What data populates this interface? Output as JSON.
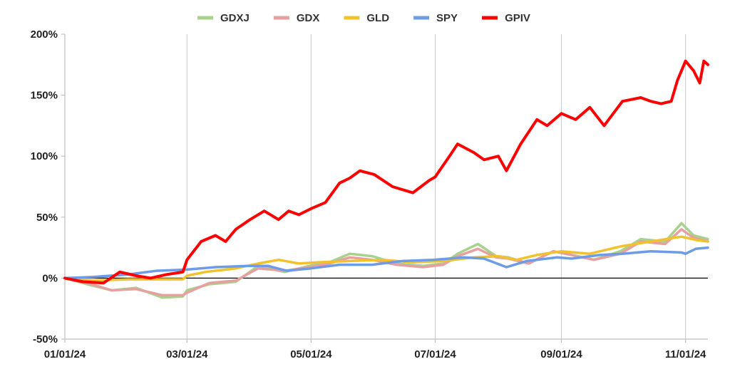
{
  "chart_data": {
    "type": "line",
    "title": "",
    "xlabel": "",
    "ylabel": "",
    "ylim": [
      -50,
      200
    ],
    "yticks": [
      -50,
      0,
      50,
      100,
      150,
      200
    ],
    "ytick_labels": [
      "-50%",
      "0%",
      "50%",
      "100%",
      "150%",
      "200%"
    ],
    "xlim": [
      "2024-01-01",
      "2024-11-12"
    ],
    "xticks": [
      "2024-01-01",
      "2024-03-01",
      "2024-05-01",
      "2024-07-01",
      "2024-09-01",
      "2024-11-01"
    ],
    "xtick_labels": [
      "01/01/24",
      "03/01/24",
      "05/01/24",
      "07/01/24",
      "09/01/24",
      "11/01/24"
    ],
    "grid": "vertical",
    "legend_position": "top",
    "zero_line": true,
    "series": [
      {
        "name": "GDXJ",
        "color": "#a9d18e",
        "width": 3.5,
        "x": [
          "2024-01-01",
          "2024-01-12",
          "2024-01-24",
          "2024-02-05",
          "2024-02-18",
          "2024-02-28",
          "2024-03-01",
          "2024-03-12",
          "2024-03-25",
          "2024-04-05",
          "2024-04-18",
          "2024-04-30",
          "2024-05-10",
          "2024-05-20",
          "2024-05-31",
          "2024-06-12",
          "2024-06-25",
          "2024-07-05",
          "2024-07-12",
          "2024-07-22",
          "2024-07-31",
          "2024-08-06",
          "2024-08-16",
          "2024-08-28",
          "2024-09-06",
          "2024-09-17",
          "2024-09-30",
          "2024-10-10",
          "2024-10-22",
          "2024-10-30",
          "2024-11-05",
          "2024-11-12"
        ],
        "y": [
          0,
          -5,
          -10,
          -8,
          -16,
          -15,
          -10,
          -5,
          -3,
          10,
          5,
          10,
          13,
          20,
          18,
          12,
          10,
          12,
          20,
          28,
          18,
          17,
          12,
          22,
          19,
          15,
          22,
          32,
          30,
          45,
          35,
          32
        ]
      },
      {
        "name": "GDX",
        "color": "#e6a0a0",
        "width": 3.5,
        "x": [
          "2024-01-01",
          "2024-01-12",
          "2024-01-24",
          "2024-02-05",
          "2024-02-18",
          "2024-02-28",
          "2024-03-01",
          "2024-03-12",
          "2024-03-25",
          "2024-04-05",
          "2024-04-18",
          "2024-04-30",
          "2024-05-10",
          "2024-05-20",
          "2024-05-31",
          "2024-06-12",
          "2024-06-25",
          "2024-07-05",
          "2024-07-12",
          "2024-07-22",
          "2024-07-31",
          "2024-08-06",
          "2024-08-16",
          "2024-08-28",
          "2024-09-06",
          "2024-09-17",
          "2024-09-30",
          "2024-10-10",
          "2024-10-22",
          "2024-10-30",
          "2024-11-05",
          "2024-11-12"
        ],
        "y": [
          0,
          -4,
          -10,
          -9,
          -14,
          -14,
          -12,
          -4,
          -2,
          8,
          6,
          9,
          12,
          17,
          15,
          11,
          9,
          11,
          18,
          24,
          17,
          16,
          12,
          22,
          19,
          15,
          20,
          30,
          28,
          40,
          33,
          30
        ]
      },
      {
        "name": "GLD",
        "color": "#f2c12e",
        "width": 3.5,
        "x": [
          "2024-01-01",
          "2024-01-15",
          "2024-02-01",
          "2024-02-15",
          "2024-02-28",
          "2024-03-01",
          "2024-03-10",
          "2024-03-25",
          "2024-04-05",
          "2024-04-15",
          "2024-04-25",
          "2024-05-05",
          "2024-05-20",
          "2024-06-05",
          "2024-06-20",
          "2024-07-05",
          "2024-07-20",
          "2024-08-01",
          "2024-08-10",
          "2024-08-20",
          "2024-09-01",
          "2024-09-15",
          "2024-09-30",
          "2024-10-15",
          "2024-10-30",
          "2024-11-07",
          "2024-11-12"
        ],
        "y": [
          0,
          -2,
          -1,
          -1,
          -1,
          2,
          5,
          8,
          12,
          15,
          12,
          13,
          14,
          15,
          13,
          14,
          17,
          18,
          15,
          19,
          22,
          20,
          26,
          30,
          34,
          31,
          30
        ]
      },
      {
        "name": "SPY",
        "color": "#6e9be6",
        "width": 3.5,
        "x": [
          "2024-01-01",
          "2024-01-15",
          "2024-02-01",
          "2024-02-15",
          "2024-03-01",
          "2024-03-15",
          "2024-03-31",
          "2024-04-10",
          "2024-04-19",
          "2024-05-01",
          "2024-05-15",
          "2024-05-31",
          "2024-06-15",
          "2024-06-30",
          "2024-07-15",
          "2024-07-25",
          "2024-08-05",
          "2024-08-15",
          "2024-08-30",
          "2024-09-06",
          "2024-09-20",
          "2024-10-01",
          "2024-10-15",
          "2024-10-30",
          "2024-11-01",
          "2024-11-06",
          "2024-11-12"
        ],
        "y": [
          0,
          1,
          3,
          6,
          7,
          9,
          10,
          10,
          6,
          8,
          11,
          11,
          14,
          15,
          17,
          16,
          9,
          14,
          17,
          16,
          19,
          20,
          22,
          21,
          20,
          24,
          25
        ]
      },
      {
        "name": "GPIV",
        "color": "#ff0000",
        "width": 4,
        "x": [
          "2024-01-01",
          "2024-01-10",
          "2024-01-20",
          "2024-01-28",
          "2024-02-05",
          "2024-02-12",
          "2024-02-20",
          "2024-02-28",
          "2024-03-01",
          "2024-03-08",
          "2024-03-15",
          "2024-03-20",
          "2024-03-25",
          "2024-04-01",
          "2024-04-08",
          "2024-04-15",
          "2024-04-20",
          "2024-04-25",
          "2024-05-01",
          "2024-05-08",
          "2024-05-15",
          "2024-05-20",
          "2024-05-25",
          "2024-06-01",
          "2024-06-10",
          "2024-06-20",
          "2024-06-28",
          "2024-07-01",
          "2024-07-08",
          "2024-07-12",
          "2024-07-20",
          "2024-07-25",
          "2024-08-01",
          "2024-08-05",
          "2024-08-12",
          "2024-08-20",
          "2024-08-25",
          "2024-09-01",
          "2024-09-08",
          "2024-09-15",
          "2024-09-22",
          "2024-10-01",
          "2024-10-10",
          "2024-10-15",
          "2024-10-20",
          "2024-10-25",
          "2024-10-28",
          "2024-11-01",
          "2024-11-05",
          "2024-11-08",
          "2024-11-10",
          "2024-11-12"
        ],
        "y": [
          0,
          -3,
          -4,
          5,
          2,
          0,
          3,
          5,
          15,
          30,
          35,
          30,
          40,
          48,
          55,
          48,
          55,
          52,
          57,
          62,
          78,
          82,
          88,
          85,
          75,
          70,
          80,
          83,
          100,
          110,
          103,
          97,
          100,
          88,
          110,
          130,
          125,
          135,
          130,
          140,
          125,
          145,
          148,
          145,
          143,
          145,
          162,
          178,
          170,
          160,
          178,
          175
        ]
      }
    ]
  }
}
